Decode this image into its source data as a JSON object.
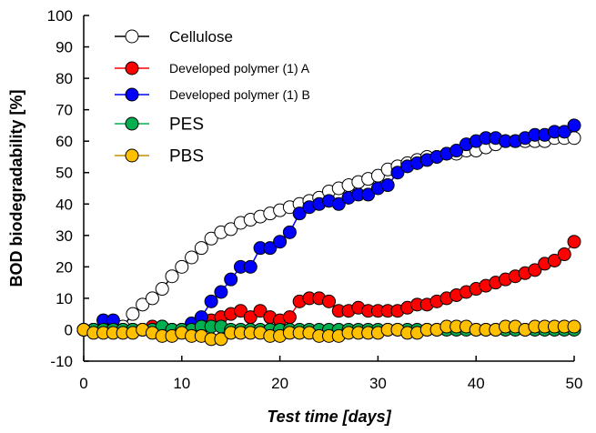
{
  "chart_data": {
    "type": "line",
    "xlabel": "Test time [days]",
    "ylabel": "BOD biodegradability [%]",
    "xlim": [
      0,
      50
    ],
    "ylim": [
      -10,
      100
    ],
    "x_ticks": [
      "0",
      "10",
      "20",
      "30",
      "40",
      "50"
    ],
    "y_ticks": [
      "-10",
      "0",
      "10",
      "20",
      "30",
      "40",
      "50",
      "60",
      "70",
      "80",
      "90",
      "100"
    ],
    "grid": false,
    "legend_position": "top-left",
    "x": [
      0,
      1,
      2,
      3,
      4,
      5,
      6,
      7,
      8,
      9,
      10,
      11,
      12,
      13,
      14,
      15,
      16,
      17,
      18,
      19,
      20,
      21,
      22,
      23,
      24,
      25,
      26,
      27,
      28,
      29,
      30,
      31,
      32,
      33,
      34,
      35,
      36,
      37,
      38,
      39,
      40,
      41,
      42,
      43,
      44,
      45,
      46,
      47,
      48,
      49,
      50
    ],
    "series": [
      {
        "name": "Cellulose",
        "color": "#000000",
        "fill": "#ffffff",
        "values": [
          0,
          0,
          0,
          0,
          1,
          5,
          8,
          10,
          13,
          17,
          20,
          23,
          26,
          29,
          31,
          32,
          34,
          35,
          36,
          37,
          38,
          39,
          40,
          41,
          42,
          44,
          45,
          46,
          47,
          48,
          49,
          51,
          52,
          53,
          54,
          55,
          55,
          56,
          56,
          57,
          57,
          58,
          59,
          60,
          60,
          60,
          60,
          60,
          61,
          61,
          61
        ]
      },
      {
        "name": "Developed polymer (1) A",
        "color": "#ff0000",
        "fill": "#ff0000",
        "values": [
          0,
          0,
          0,
          0,
          0,
          0,
          0,
          1,
          1,
          0,
          0,
          1,
          2,
          3,
          4,
          5,
          6,
          4,
          6,
          4,
          3,
          4,
          9,
          10,
          10,
          9,
          6,
          6,
          7,
          6,
          6,
          6,
          6,
          7,
          8,
          8,
          9,
          10,
          11,
          12,
          13,
          14,
          15,
          16,
          17,
          18,
          19,
          21,
          22,
          24,
          28
        ]
      },
      {
        "name": "Developed polymer (1) B",
        "color": "#0000ff",
        "fill": "#0000ff",
        "values": [
          0,
          0,
          3,
          3,
          0,
          0,
          0,
          0,
          0,
          0,
          0,
          2,
          4,
          9,
          12,
          16,
          20,
          20,
          26,
          26,
          28,
          31,
          37,
          39,
          40,
          41,
          40,
          42,
          43,
          43,
          45,
          46,
          50,
          52,
          53,
          54,
          55,
          56,
          57,
          59,
          60,
          61,
          61,
          60,
          60,
          61,
          62,
          62,
          63,
          63,
          65
        ]
      },
      {
        "name": "PES",
        "color": "#00b050",
        "fill": "#00b050",
        "values": [
          0,
          0,
          0,
          0,
          0,
          0,
          0,
          0,
          1,
          0,
          0,
          0,
          1,
          1,
          1,
          0,
          0,
          0,
          0,
          0,
          0,
          0,
          0,
          0,
          0,
          0,
          0,
          0,
          0,
          0,
          0,
          0,
          0,
          0,
          0,
          0,
          0,
          0,
          0,
          0,
          0,
          0,
          0,
          0,
          0,
          0,
          0,
          0,
          0,
          0,
          0
        ]
      },
      {
        "name": "PBS",
        "color": "#bf9000",
        "fill": "#ffc000",
        "values": [
          0,
          -1,
          -1,
          -1,
          -1,
          -1,
          0,
          -1,
          -2,
          -2,
          -1,
          -2,
          -2,
          -3,
          -3,
          -1,
          -1,
          -1,
          -1,
          -2,
          -2,
          -1,
          -1,
          -1,
          -2,
          -2,
          -2,
          -1,
          -1,
          -1,
          -1,
          0,
          0,
          -1,
          -1,
          0,
          0,
          1,
          1,
          1,
          0,
          0,
          0,
          1,
          1,
          0,
          1,
          1,
          1,
          1,
          1
        ]
      }
    ]
  }
}
